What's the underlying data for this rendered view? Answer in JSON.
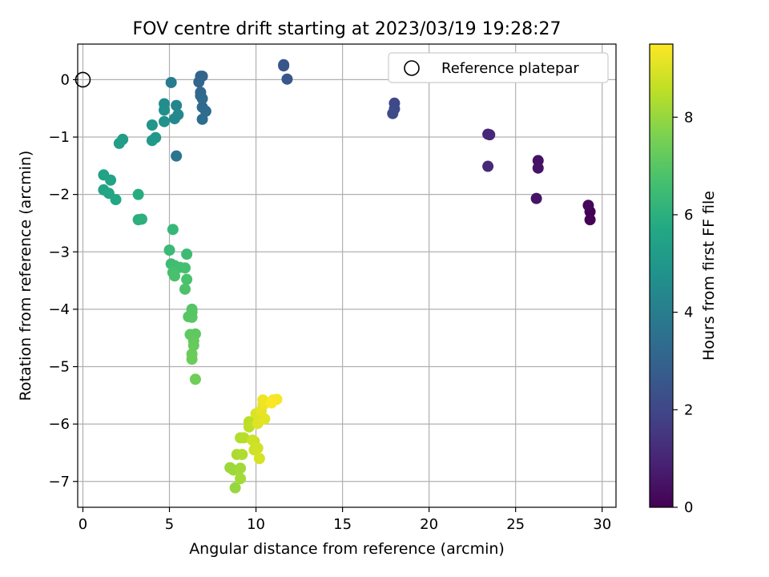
{
  "chart_data": {
    "type": "scatter",
    "title": "FOV centre drift starting at 2023/03/19 19:28:27",
    "xlabel": "Angular distance from reference (arcmin)",
    "ylabel": "Rotation from reference (arcmin)",
    "xlim": [
      -0.3,
      30.8
    ],
    "ylim": [
      -7.45,
      0.62
    ],
    "xticks": [
      0,
      5,
      10,
      15,
      20,
      25,
      30
    ],
    "yticks": [
      0,
      -1,
      -2,
      -3,
      -4,
      -5,
      -6,
      -7
    ],
    "grid": true,
    "legend": {
      "placement": "upper right",
      "entries": [
        "Reference platepar"
      ]
    },
    "reference_point": {
      "x": 0,
      "y": 0,
      "label": "Reference platepar"
    },
    "colorbar": {
      "label": "Hours from first FF file",
      "colormap": "viridis",
      "range": [
        0,
        9.5
      ],
      "ticks": [
        0,
        2,
        4,
        6,
        8
      ]
    },
    "series": [
      {
        "points": [
          [
            29.3,
            -2.3,
            0.0
          ],
          [
            29.3,
            -2.44,
            0.05
          ],
          [
            29.2,
            -2.19,
            0.15
          ],
          [
            26.3,
            -1.41,
            0.45
          ],
          [
            26.3,
            -1.54,
            0.5
          ],
          [
            26.2,
            -2.07,
            0.55
          ],
          [
            23.4,
            -0.95,
            1.0
          ],
          [
            23.5,
            -0.96,
            1.05
          ],
          [
            23.4,
            -1.51,
            1.1
          ],
          [
            18.0,
            -0.41,
            2.05
          ],
          [
            18.0,
            -0.51,
            2.1
          ],
          [
            17.9,
            -0.59,
            2.15
          ],
          [
            11.6,
            0.24,
            2.5
          ],
          [
            11.6,
            0.26,
            2.55
          ],
          [
            11.8,
            0.01,
            2.6
          ],
          [
            6.8,
            0.06,
            3.0
          ],
          [
            6.9,
            0.06,
            3.05
          ],
          [
            6.7,
            -0.04,
            3.1
          ],
          [
            6.8,
            -0.22,
            3.15
          ],
          [
            6.8,
            -0.28,
            3.2
          ],
          [
            6.9,
            -0.33,
            3.25
          ],
          [
            6.9,
            -0.48,
            3.3
          ],
          [
            7.1,
            -0.55,
            3.35
          ],
          [
            6.9,
            -0.69,
            3.4
          ],
          [
            5.1,
            -0.05,
            3.9
          ],
          [
            5.4,
            -1.33,
            3.7
          ],
          [
            5.4,
            -0.45,
            4.3
          ],
          [
            5.5,
            -0.61,
            4.4
          ],
          [
            5.3,
            -0.68,
            4.45
          ],
          [
            4.7,
            -0.42,
            4.6
          ],
          [
            4.7,
            -0.53,
            4.7
          ],
          [
            4.7,
            -0.73,
            4.8
          ],
          [
            4.0,
            -0.79,
            4.95
          ],
          [
            4.2,
            -1.01,
            5.05
          ],
          [
            4.0,
            -1.06,
            5.1
          ],
          [
            2.3,
            -1.04,
            5.2
          ],
          [
            2.1,
            -1.11,
            5.25
          ],
          [
            1.2,
            -1.66,
            5.45
          ],
          [
            1.6,
            -1.75,
            5.5
          ],
          [
            1.2,
            -1.92,
            5.55
          ],
          [
            1.5,
            -1.98,
            5.6
          ],
          [
            1.9,
            -2.09,
            5.65
          ],
          [
            3.2,
            -2.0,
            5.85
          ],
          [
            3.2,
            -2.44,
            5.95
          ],
          [
            3.4,
            -2.43,
            6.0
          ],
          [
            5.2,
            -2.61,
            6.3
          ],
          [
            5.0,
            -2.97,
            6.4
          ],
          [
            6.0,
            -3.04,
            6.45
          ],
          [
            5.1,
            -3.21,
            6.5
          ],
          [
            5.3,
            -3.24,
            6.55
          ],
          [
            5.6,
            -3.27,
            6.6
          ],
          [
            5.9,
            -3.28,
            6.65
          ],
          [
            5.2,
            -3.36,
            6.7
          ],
          [
            5.3,
            -3.42,
            6.72
          ],
          [
            6.0,
            -3.48,
            6.75
          ],
          [
            5.9,
            -3.65,
            6.8
          ],
          [
            6.3,
            -4.0,
            6.9
          ],
          [
            6.3,
            -4.05,
            6.95
          ],
          [
            6.1,
            -4.13,
            7.0
          ],
          [
            6.3,
            -4.14,
            7.02
          ],
          [
            6.2,
            -4.44,
            7.1
          ],
          [
            6.5,
            -4.43,
            7.15
          ],
          [
            6.4,
            -4.55,
            7.2
          ],
          [
            6.4,
            -4.63,
            7.25
          ],
          [
            6.3,
            -4.78,
            7.3
          ],
          [
            6.3,
            -4.87,
            7.35
          ],
          [
            6.5,
            -5.22,
            7.4
          ],
          [
            8.8,
            -7.11,
            8.0
          ],
          [
            8.5,
            -6.76,
            8.05
          ],
          [
            8.7,
            -6.8,
            8.1
          ],
          [
            9.1,
            -6.77,
            8.15
          ],
          [
            9.1,
            -6.95,
            8.2
          ],
          [
            8.9,
            -6.53,
            8.3
          ],
          [
            9.2,
            -6.53,
            8.35
          ],
          [
            9.1,
            -6.24,
            8.4
          ],
          [
            9.3,
            -6.24,
            8.45
          ],
          [
            9.6,
            -5.96,
            8.5
          ],
          [
            9.6,
            -6.05,
            8.55
          ],
          [
            9.9,
            -6.3,
            8.7
          ],
          [
            9.8,
            -6.28,
            8.75
          ],
          [
            9.9,
            -6.45,
            8.8
          ],
          [
            10.1,
            -6.42,
            8.85
          ],
          [
            10.2,
            -6.6,
            8.9
          ],
          [
            10.0,
            -5.82,
            9.0
          ],
          [
            10.1,
            -5.99,
            9.05
          ],
          [
            10.5,
            -5.91,
            9.1
          ],
          [
            10.3,
            -5.77,
            9.15
          ],
          [
            10.4,
            -5.67,
            9.2
          ],
          [
            10.4,
            -5.58,
            9.25
          ],
          [
            10.5,
            -5.63,
            9.3
          ],
          [
            11.0,
            -5.58,
            9.35
          ],
          [
            11.2,
            -5.57,
            9.4
          ],
          [
            10.9,
            -5.63,
            9.45
          ]
        ]
      }
    ]
  }
}
